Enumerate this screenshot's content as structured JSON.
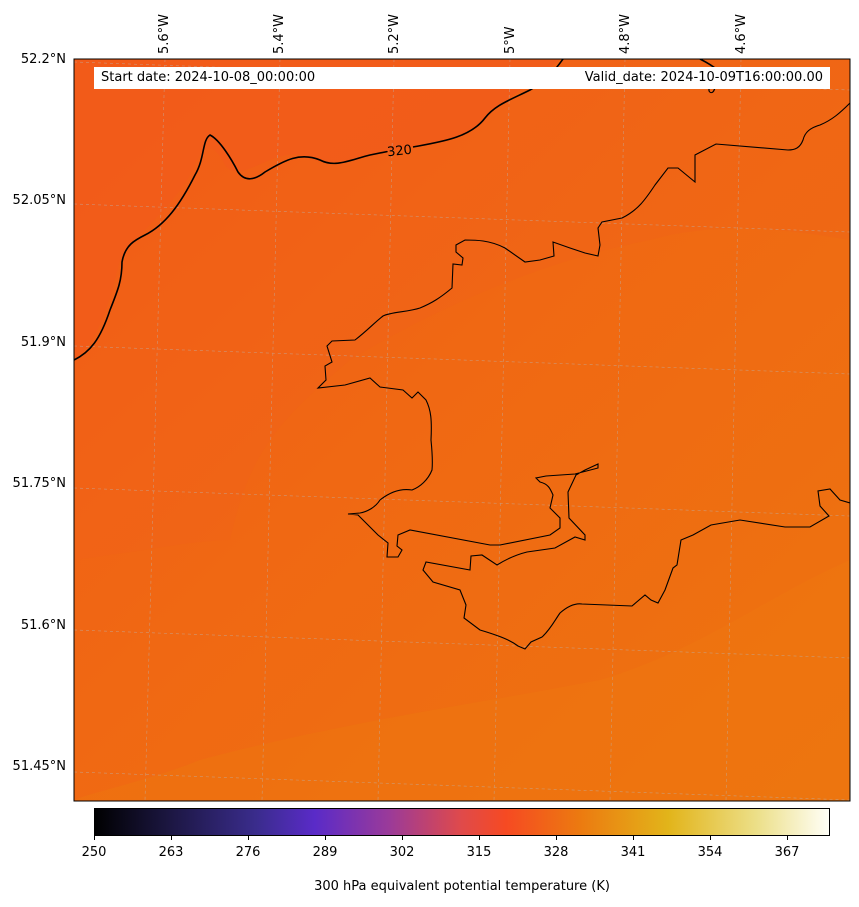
{
  "header": {
    "start_date": "Start date: 2024-10-08_00:00:00",
    "valid_date": "Valid_date: 2024-10-09T16:00:00.00"
  },
  "map": {
    "lat_labels": [
      "52.2°N",
      "52.05°N",
      "51.9°N",
      "51.75°N",
      "51.6°N",
      "51.45°N"
    ],
    "lon_labels": [
      "5.6°W",
      "5.4°W",
      "5.2°W",
      "5°W",
      "4.8°W",
      "4.6°W"
    ],
    "contour_label": "320",
    "field_colors": {
      "dark": "#f25c17",
      "mid": "#f06a12",
      "light": "#ee7210"
    }
  },
  "colorbar": {
    "title": "300 hPa equivalent potential temperature (K)",
    "ticks": [
      "250",
      "263",
      "276",
      "289",
      "302",
      "315",
      "328",
      "341",
      "354",
      "367"
    ],
    "range": [
      250,
      374
    ]
  }
}
